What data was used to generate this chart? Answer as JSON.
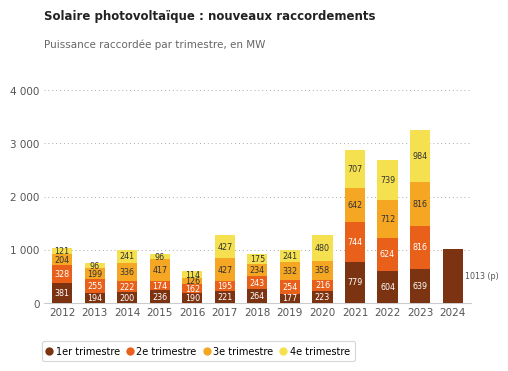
{
  "title": "Solaire photovoltaïque : nouveaux raccordements",
  "subtitle": "Puissance raccordée par trimestre, en MW",
  "years": [
    2012,
    2013,
    2014,
    2015,
    2016,
    2017,
    2018,
    2019,
    2020,
    2021,
    2022,
    2023,
    2024
  ],
  "q1": [
    381,
    194,
    200,
    236,
    190,
    221,
    264,
    177,
    223,
    779,
    604,
    639,
    1013
  ],
  "q2": [
    328,
    255,
    222,
    174,
    162,
    195,
    243,
    254,
    216,
    744,
    624,
    816,
    0
  ],
  "q3": [
    204,
    199,
    336,
    417,
    126,
    427,
    234,
    332,
    358,
    642,
    712,
    816,
    0
  ],
  "q4": [
    121,
    96,
    241,
    96,
    114,
    427,
    175,
    241,
    480,
    707,
    739,
    984,
    0
  ],
  "q1_labels": [
    "381",
    "194",
    "200",
    "236",
    "190",
    "221",
    "264",
    "177",
    "223",
    "779",
    "604",
    "639",
    "1013 (p)"
  ],
  "q2_labels": [
    "328",
    "255",
    "222",
    "174",
    "162",
    "195",
    "243",
    "254",
    "216",
    "744",
    "624",
    "816",
    ""
  ],
  "q3_labels": [
    "204",
    "199",
    "336",
    "417",
    "126",
    "427",
    "234",
    "332",
    "358",
    "642",
    "712",
    "816",
    ""
  ],
  "q4_labels": [
    "121",
    "96",
    "241",
    "96",
    "114",
    "427",
    "175",
    "241",
    "480",
    "707",
    "739",
    "984",
    ""
  ],
  "color_q1": "#7B3311",
  "color_q2": "#E8601A",
  "color_q3": "#F5A623",
  "color_q4": "#F5E050",
  "ylim": [
    0,
    4000
  ],
  "yticks": [
    0,
    1000,
    2000,
    3000,
    4000
  ],
  "ytick_labels": [
    "0",
    "1 000",
    "2 000",
    "3 000",
    "4 000"
  ],
  "legend_labels": [
    "1er trimestre",
    "2e trimestre",
    "3e trimestre",
    "4e trimestre"
  ],
  "background_color": "#ffffff",
  "label_fontsize": 5.8,
  "axis_fontsize": 7.5
}
